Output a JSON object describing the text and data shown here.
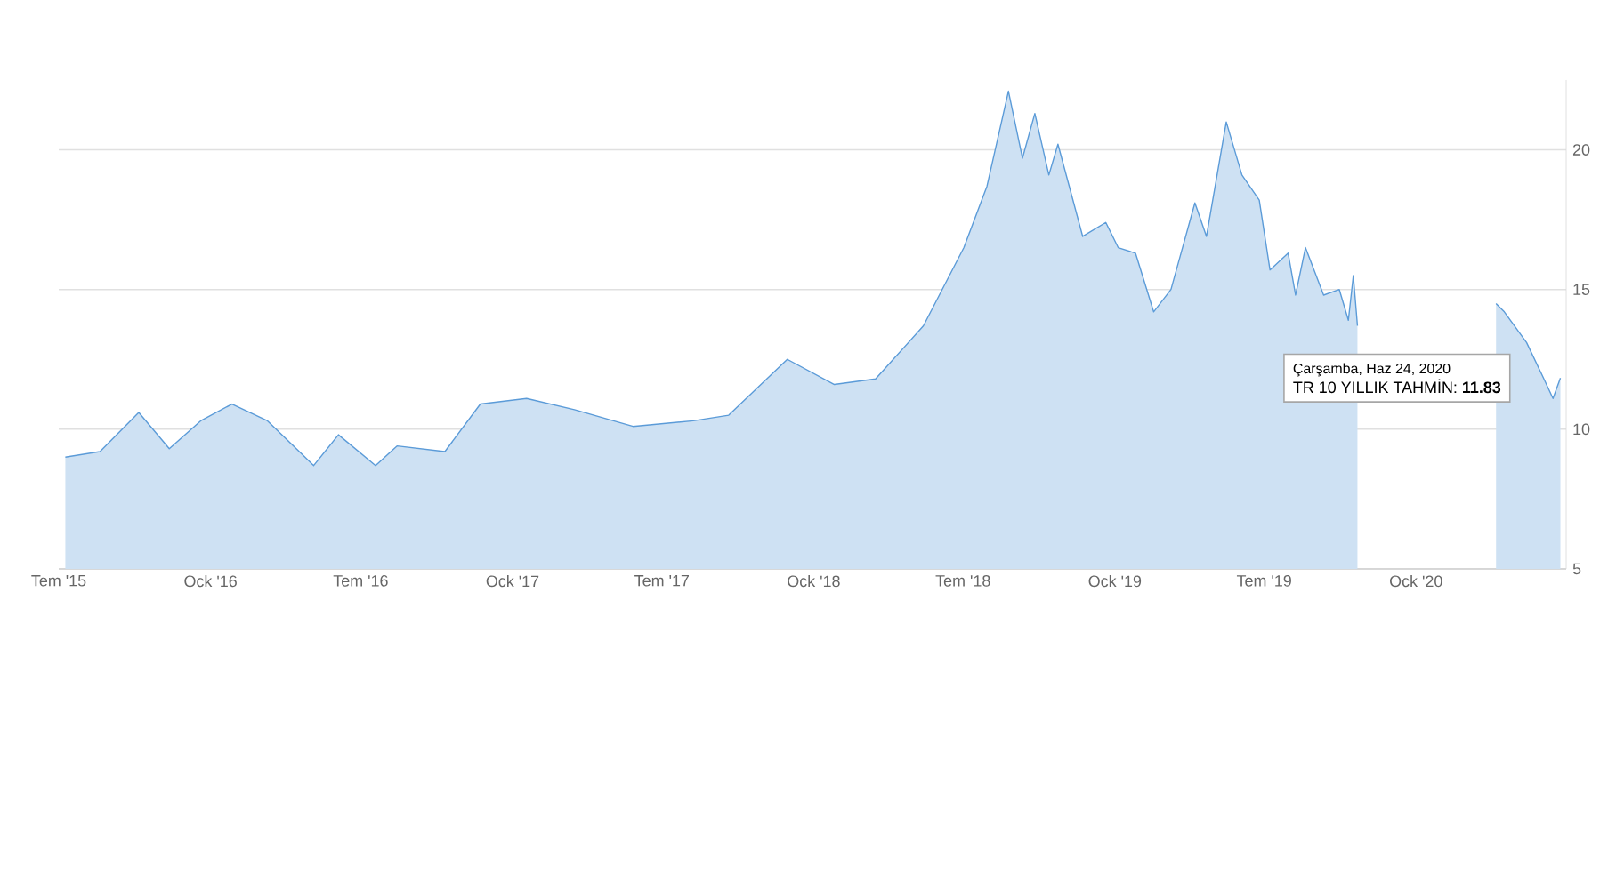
{
  "chart_data": {
    "type": "area",
    "series": [
      {
        "color": "#5b9bd8",
        "x": [
          "2015-07-09",
          "2015-08-20",
          "2015-10-06",
          "2015-11-12",
          "2015-12-20",
          "2016-01-27",
          "2016-03-10",
          "2016-05-05",
          "2016-06-04",
          "2016-07-19",
          "2016-08-14",
          "2016-10-11",
          "2016-11-23",
          "2017-01-18",
          "2017-03-17",
          "2017-05-27",
          "2017-08-08",
          "2017-09-20",
          "2017-11-30",
          "2018-01-26",
          "2018-03-17",
          "2018-05-14",
          "2018-07-02",
          "2018-07-30",
          "2018-08-25",
          "2018-09-11",
          "2018-09-26",
          "2018-10-13",
          "2018-10-24",
          "2018-11-23",
          "2018-12-21",
          "2019-01-05",
          "2019-01-26",
          "2019-02-17",
          "2019-03-10",
          "2019-04-08",
          "2019-04-22",
          "2019-05-16",
          "2019-06-04",
          "2019-06-25",
          "2019-07-08",
          "2019-07-30",
          "2019-08-08",
          "2019-08-20",
          "2019-09-11",
          "2019-09-30",
          "2019-10-11",
          "2019-10-17",
          "2019-10-22",
          "2019-12-15",
          "2020-04-07",
          "2020-04-17",
          "2020-05-14",
          "2020-06-04",
          "2020-06-15",
          "2020-06-24"
        ],
        "values": [
          9.0,
          9.2,
          10.6,
          9.3,
          10.3,
          10.9,
          10.3,
          8.7,
          9.8,
          8.7,
          9.4,
          9.2,
          10.9,
          11.1,
          10.7,
          10.1,
          10.3,
          10.5,
          12.5,
          11.6,
          11.8,
          13.7,
          16.5,
          18.7,
          22.1,
          19.7,
          21.3,
          19.1,
          20.2,
          16.9,
          17.4,
          16.5,
          16.3,
          14.2,
          15.0,
          18.1,
          16.9,
          21.0,
          19.1,
          18.2,
          15.7,
          16.3,
          14.8,
          16.5,
          14.8,
          15.0,
          13.9,
          15.5,
          13.7,
          null,
          14.5,
          14.2,
          13.1,
          11.8,
          11.1,
          11.83
        ],
        "marker": "none"
      }
    ],
    "xlim": [
      "2015-07-01",
      "2020-07-01"
    ],
    "xticks": [
      {
        "value": "2015-07-01",
        "label": "Tem '15"
      },
      {
        "value": "2016-01-01",
        "label": "Ock '16"
      },
      {
        "value": "2016-07-01",
        "label": "Tem '16"
      },
      {
        "value": "2017-01-01",
        "label": "Ock '17"
      },
      {
        "value": "2017-07-01",
        "label": "Tem '17"
      },
      {
        "value": "2018-01-01",
        "label": "Ock '18"
      },
      {
        "value": "2018-07-01",
        "label": "Tem '18"
      },
      {
        "value": "2019-01-01",
        "label": "Ock '19"
      },
      {
        "value": "2019-07-01",
        "label": "Tem '19"
      },
      {
        "value": "2020-01-01",
        "label": "Ock '20"
      }
    ],
    "ylim": [
      5,
      22.5
    ],
    "yticks": [
      5,
      10,
      15,
      20
    ],
    "grid": "y",
    "annotations": [
      "Çarşamba, Haz 24, 2020",
      "TR 10 YILLIK TAHMİN: **11.83**"
    ]
  }
}
